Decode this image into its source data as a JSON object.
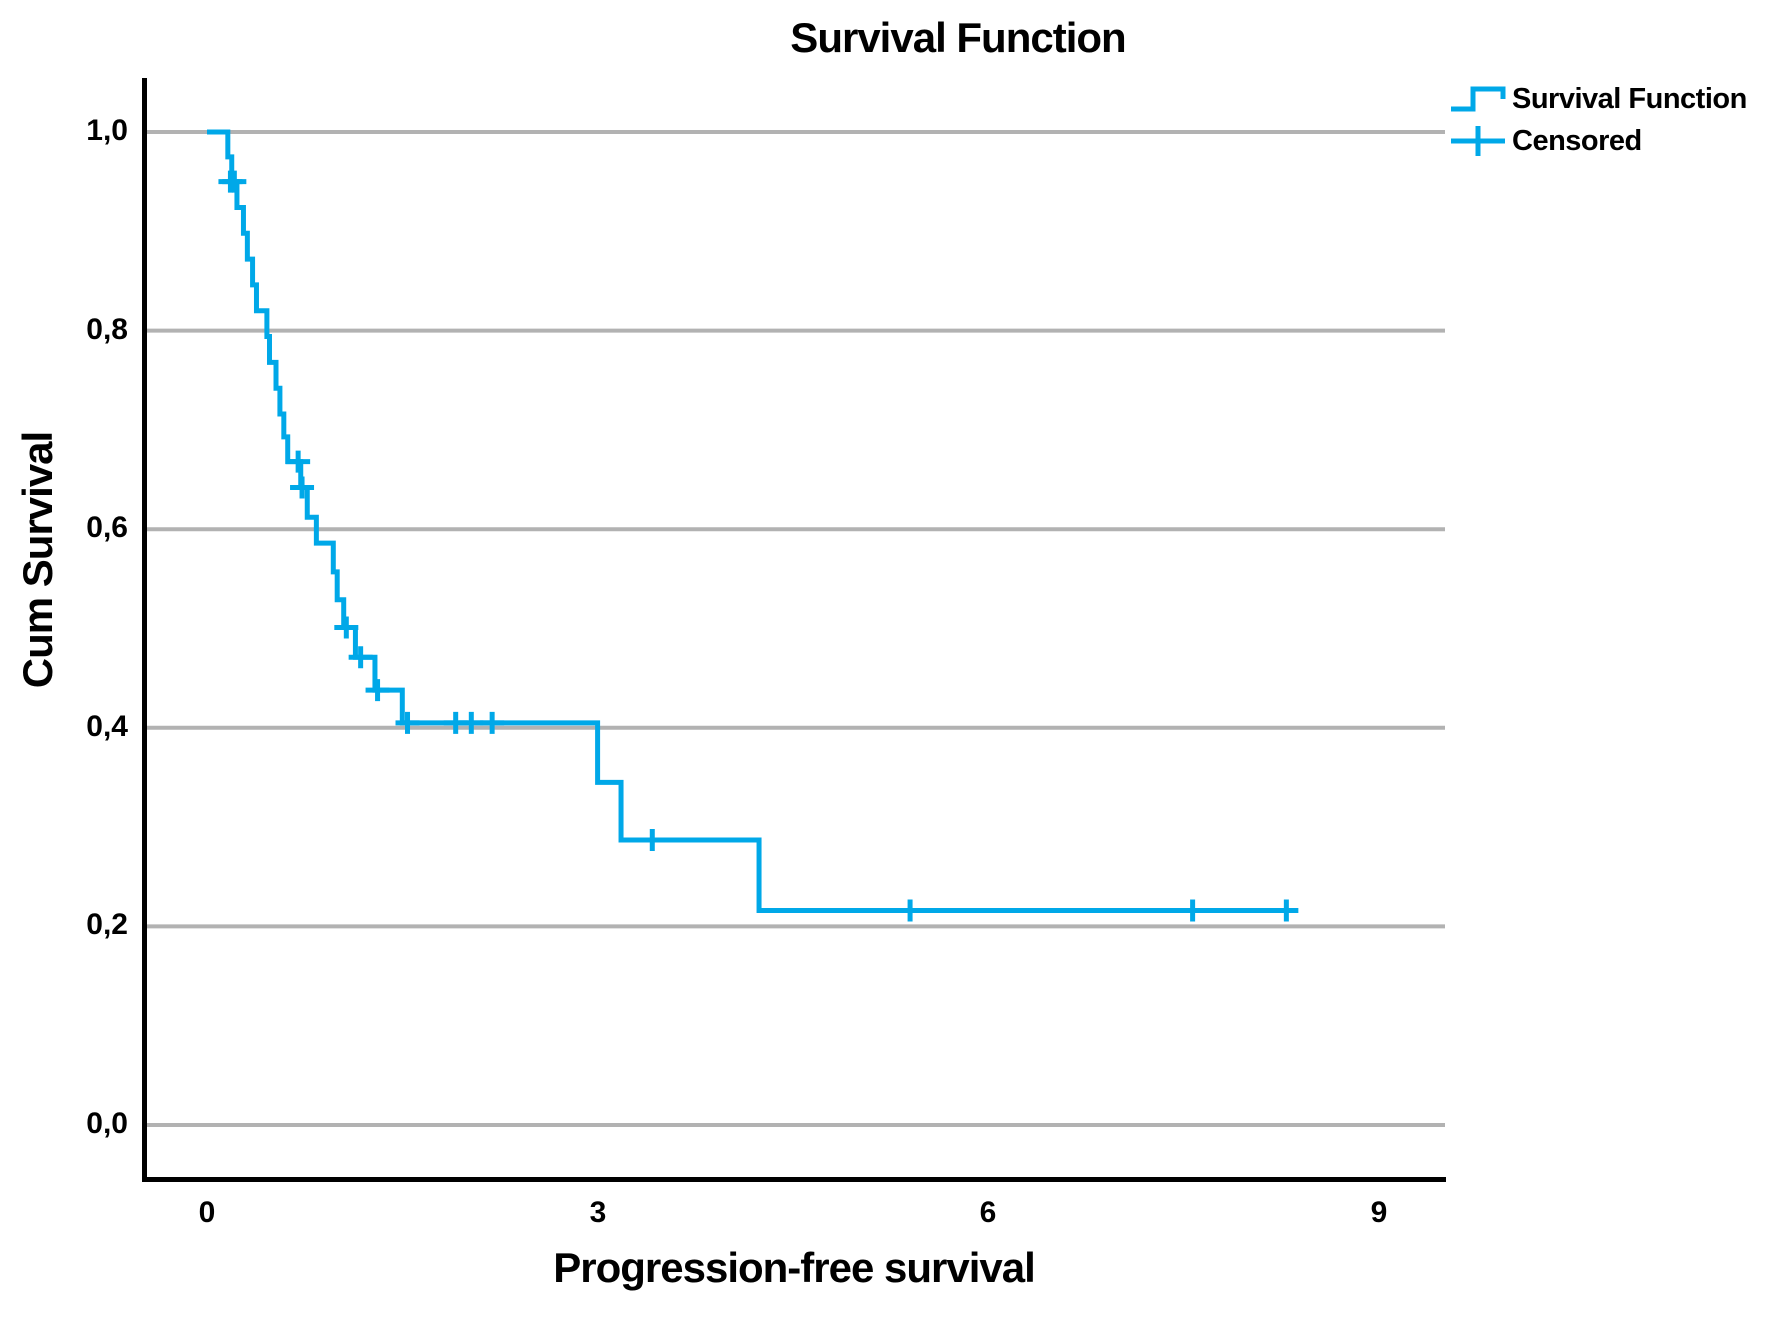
{
  "title": "Survival Function",
  "legend": {
    "items": [
      {
        "label": "Survival Function",
        "glyph": "step-line"
      },
      {
        "label": "Censored",
        "glyph": "plus"
      }
    ]
  },
  "colors": {
    "curve": "#00A8E8",
    "grid": "#B2B2B2",
    "axis": "#000000",
    "text": "#000000",
    "background": "#FFFFFF"
  },
  "chart_data": {
    "type": "line",
    "subtype": "kaplan-meier-step",
    "title": "Survival Function",
    "xlabel": "Progression-free survival",
    "ylabel": "Cum Survival",
    "xlim": [
      0,
      9.5
    ],
    "ylim": [
      0,
      1.05
    ],
    "x_ticks": [
      0,
      3,
      6,
      9
    ],
    "x_tick_labels": [
      "0",
      "3",
      "6",
      "9"
    ],
    "y_ticks": [
      0.0,
      0.2,
      0.4,
      0.6,
      0.8,
      1.0
    ],
    "y_tick_labels": [
      "0,0",
      "0,2",
      "0,4",
      "0,6",
      "0,8",
      "1,0"
    ],
    "grid": "horizontal",
    "legend_position": "top-right-outside",
    "series": [
      {
        "name": "Survival Function",
        "color": "#00A8E8",
        "steps": [
          [
            0.0,
            1.0
          ],
          [
            0.16,
            0.975
          ],
          [
            0.19,
            0.95
          ],
          [
            0.23,
            0.924
          ],
          [
            0.28,
            0.898
          ],
          [
            0.31,
            0.872
          ],
          [
            0.35,
            0.846
          ],
          [
            0.38,
            0.82
          ],
          [
            0.46,
            0.794
          ],
          [
            0.48,
            0.768
          ],
          [
            0.53,
            0.742
          ],
          [
            0.56,
            0.716
          ],
          [
            0.59,
            0.693
          ],
          [
            0.62,
            0.668
          ],
          [
            0.72,
            0.642
          ],
          [
            0.77,
            0.612
          ],
          [
            0.84,
            0.586
          ],
          [
            0.97,
            0.557
          ],
          [
            1.0,
            0.529
          ],
          [
            1.05,
            0.501
          ],
          [
            1.14,
            0.471
          ],
          [
            1.29,
            0.438
          ],
          [
            1.5,
            0.405
          ],
          [
            3.0,
            0.345
          ],
          [
            3.18,
            0.287
          ],
          [
            4.24,
            0.216
          ]
        ],
        "end_time": 8.37
      }
    ],
    "censored": {
      "name": "Censored",
      "color": "#00A8E8",
      "points": [
        [
          0.18,
          0.95
        ],
        [
          0.21,
          0.95
        ],
        [
          0.7,
          0.668
        ],
        [
          0.73,
          0.642
        ],
        [
          1.07,
          0.501
        ],
        [
          1.18,
          0.471
        ],
        [
          1.31,
          0.438
        ],
        [
          1.54,
          0.405
        ],
        [
          1.91,
          0.405
        ],
        [
          2.03,
          0.405
        ],
        [
          2.19,
          0.405
        ],
        [
          3.42,
          0.287
        ],
        [
          5.4,
          0.216
        ],
        [
          7.57,
          0.216
        ],
        [
          8.29,
          0.216
        ]
      ]
    }
  }
}
